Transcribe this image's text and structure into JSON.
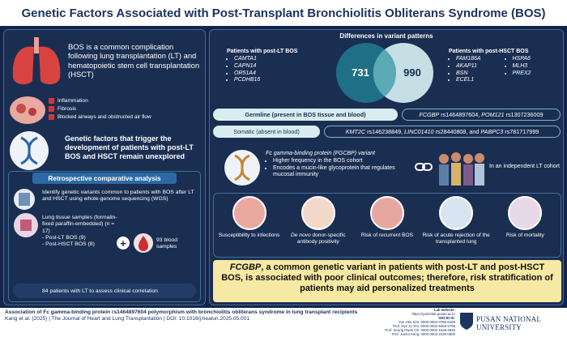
{
  "header": {
    "title": "Genetic Factors Associated with Post-Transplant Bronchiolitis Obliterans Syndrome (BOS)"
  },
  "intro": {
    "text": "BOS is a common complication following lung transplantation (LT) and hematopoietic stem cell transplantation (HSCT)",
    "effects": [
      "Inflammation",
      "Fibrosis",
      "Blocked airways and obstructed air flow"
    ],
    "gap": "Genetic factors that trigger the development of patients with post-LT BOS and HSCT remain unexplored"
  },
  "analysis": {
    "title": "Retrospective comparative analysis",
    "aim": "Identify genetic variants common to patients with BOS after LT and HSCT using whole-genome sequencing (WGS)",
    "tissue": "Lung tissue samples (formalin-fixed paraffin-embedded) (n = 17)",
    "groups": [
      "- Post-LT BOS (9)",
      "- Post-HSCT BOS (8)"
    ],
    "plus": "+",
    "blood": "93 blood samples",
    "cohort": "84 patients with LT to assess clinical correlation"
  },
  "variants": {
    "title": "Differences in variant patterns",
    "lt": {
      "title": "Patients with post-LT BOS",
      "genes": [
        "CAMTA1",
        "CAPN14",
        "OR51A4",
        "PCDHB16"
      ]
    },
    "venn": {
      "lt_only": "731",
      "hsct_only": "990"
    },
    "hsct": {
      "title": "Patients with post-HSCT BOS",
      "genes": [
        "FAM186A",
        "AKAP11",
        "BSN",
        "ECEL1",
        "HSPA6",
        "MLH3",
        "PREX2"
      ]
    }
  },
  "germline": {
    "label": "Germline (present in BOS tissue and blood)",
    "parts": [
      {
        "gene": "FCGBP",
        "rest": " rs1464897604, "
      },
      {
        "gene": "POM121",
        "rest": " rs1307236009"
      }
    ]
  },
  "somatic": {
    "label": "Somatic (absent in blood)",
    "parts": [
      {
        "gene": "KMT2C",
        "rest": " rs146238849, "
      },
      {
        "gene": "LINC01410",
        "rest": " rs28440808, and "
      },
      {
        "gene": "PABPC3",
        "rest": " rs781717999"
      }
    ]
  },
  "fcgbp": {
    "title": "Fc gamma-binding protein (FGCBP) variant",
    "points": [
      "Higher frequency in the BOS cohort",
      "Encodes a mucin-like glycoprotein that regulates mucosal immunity"
    ],
    "cohort": "In an independent LT cohort"
  },
  "outcomes": [
    {
      "text": "Susceptibility to infections"
    },
    {
      "em": "De novo",
      "text": " donor-specific antibody positivity"
    },
    {
      "text": "Risk of recurrent BOS"
    },
    {
      "text": "Risk of acute rejection of the transplanted lung"
    },
    {
      "text": "Risk of mortality"
    }
  ],
  "conclusion": {
    "em": "FCGBP",
    "text": ", a common genetic variant in patients with post-LT and post-HSCT BOS, is associated with poor clinical outcomes; therefore, risk stratification of patients may aid personalized treatments"
  },
  "footer": {
    "citation": "Association of Fc gamma-binding protein rs1464897604 polymorphism with bronchiolitis obliterans syndrome in lung transplant recipients",
    "reference": "Kang et al. (2025) | The Journal of Heart and Lung Transplantation | DOI: 10.1016/j.healun.2025.05.001",
    "lab_label": "Lab website:",
    "lab_url": "https://yuminlab.pusan.ac.kr",
    "orcid_label": "ORCID ID:",
    "orcids": [
      "Yun Hee Kim: 0000-0002-0785-8186",
      "Prof. Hye Ju Yeo: 0000-0002-9455-5786",
      "Prof. Seung Hwan Oh: 0000-0002-1648-4826",
      "Prof. Jueho Kang: 0000-0003-2430-0600"
    ],
    "university": "PUSAN NATIONAL UNIVERSITY"
  }
}
